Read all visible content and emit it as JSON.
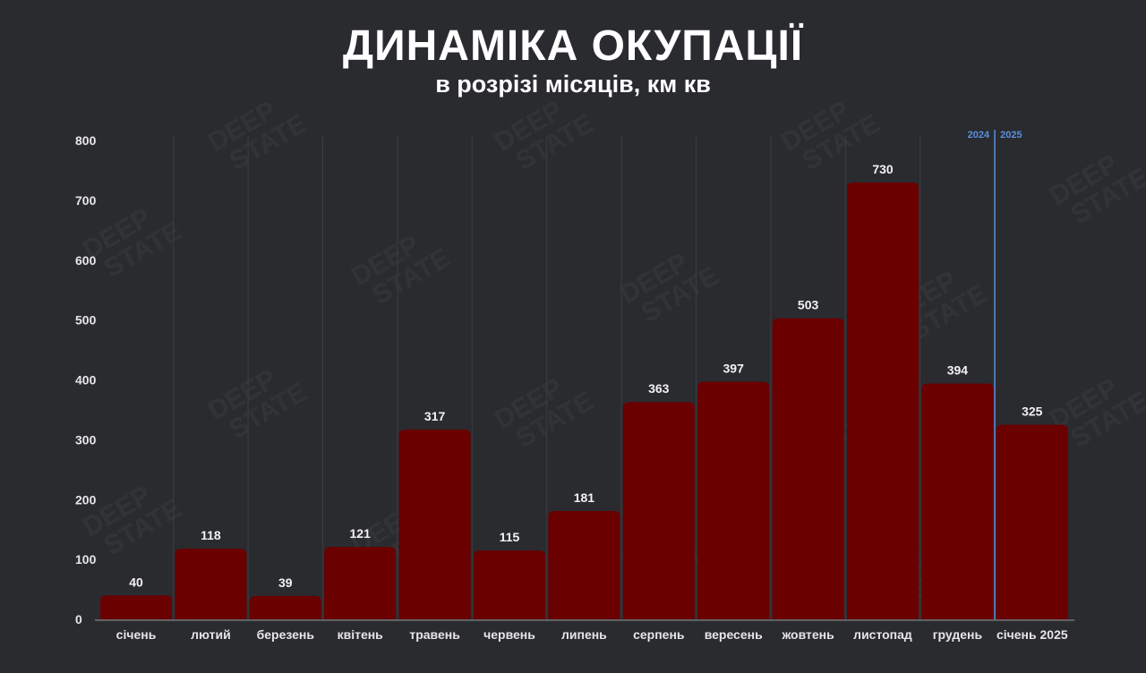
{
  "header": {
    "title": "ДИНАМІКА ОКУПАЦІЇ",
    "subtitle": "в розрізі місяців, км кв"
  },
  "watermark": [
    "DEEP",
    "STATE"
  ],
  "colors": {
    "background": "#2a2b2f",
    "bar": "#6b0000",
    "divider": "#5a8fe0"
  },
  "chart_data": {
    "type": "bar",
    "categories": [
      "січень",
      "лютий",
      "березень",
      "квітень",
      "травень",
      "червень",
      "липень",
      "серпень",
      "вересень",
      "жовтень",
      "листопад",
      "грудень",
      "січень 2025"
    ],
    "values": [
      40,
      118,
      39,
      121,
      317,
      115,
      181,
      363,
      397,
      503,
      730,
      394,
      325
    ],
    "yticks": [
      0,
      100,
      200,
      300,
      400,
      500,
      600,
      700,
      800
    ],
    "ylim": [
      0,
      800
    ],
    "title": "ДИНАМІКА ОКУПАЦІЇ",
    "subtitle": "в розрізі місяців, км кв",
    "grid": false,
    "divider": {
      "after_category_index": 11,
      "left_label": "2024",
      "right_label": "2025"
    }
  }
}
